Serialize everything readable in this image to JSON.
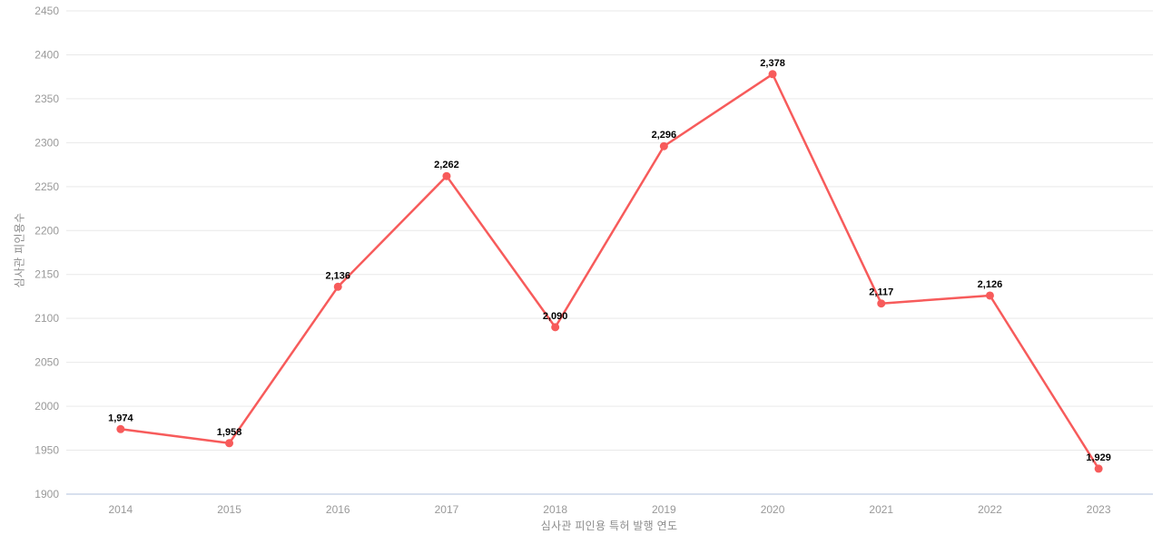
{
  "chart_data": {
    "type": "line",
    "x": [
      "2014",
      "2015",
      "2016",
      "2017",
      "2018",
      "2019",
      "2020",
      "2021",
      "2022",
      "2023"
    ],
    "values": [
      1974,
      1958,
      2136,
      2262,
      2090,
      2296,
      2378,
      2117,
      2126,
      1929
    ],
    "labels": [
      "1,974",
      "1,958",
      "2,136",
      "2,262",
      "2,090",
      "2,296",
      "2,378",
      "2,117",
      "2,126",
      "1,929"
    ],
    "title": "",
    "xlabel": "심사관 피인용 특허 발행 연도",
    "ylabel": "심사관 피인용수",
    "ylim": [
      1900,
      2450
    ],
    "ytick_step": 50,
    "grid": true,
    "legend": "none",
    "line_color": "#f75b5b",
    "colors": {
      "grid": "#e9e9e9",
      "axis_line": "#ccd6e8",
      "tick_text": "#999999",
      "title_text": "#8c8c8c",
      "label_text": "#000000",
      "background": "#ffffff"
    }
  }
}
